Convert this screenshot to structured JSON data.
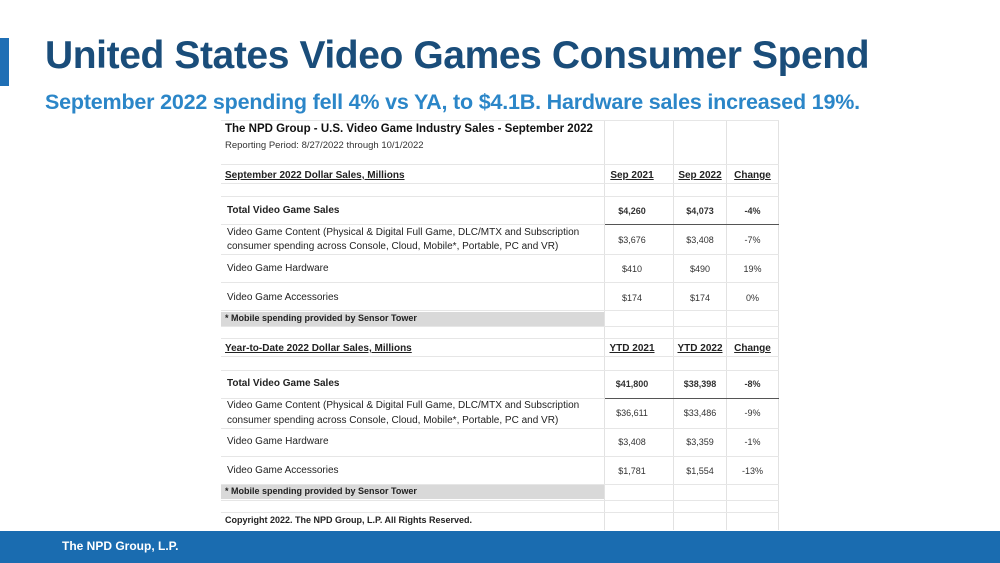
{
  "title": "United States Video Games Consumer Spend",
  "subtitle": "September 2022 spending fell 4% vs YA, to $4.1B. Hardware sales increased 19%.",
  "table": {
    "heading": "The NPD Group - U.S. Video Game Industry Sales - September 2022",
    "period": "Reporting Period: 8/27/2022 through 10/1/2022",
    "monthly": {
      "section_label": "September 2022 Dollar Sales, Millions",
      "col1": "Sep 2021",
      "col2": "Sep 2022",
      "col3": "Change",
      "total": {
        "label": "Total Video Game Sales",
        "v1": "$4,260",
        "v2": "$4,073",
        "v3": "-4%"
      },
      "content": {
        "label_line1": "Video Game Content (Physical & Digital Full Game, DLC/MTX and Subscription",
        "label_line2": "consumer spending across Console, Cloud, Mobile*, Portable, PC and VR)",
        "v1": "$3,676",
        "v2": "$3,408",
        "v3": "-7%"
      },
      "hardware": {
        "label": "Video Game Hardware",
        "v1": "$410",
        "v2": "$490",
        "v3": "19%"
      },
      "accessories": {
        "label": "Video Game Accessories",
        "v1": "$174",
        "v2": "$174",
        "v3": "0%"
      },
      "note": "* Mobile spending provided by Sensor Tower"
    },
    "ytd": {
      "section_label": "Year-to-Date 2022 Dollar Sales, Millions",
      "col1": "YTD 2021",
      "col2": "YTD 2022",
      "col3": "Change",
      "total": {
        "label": "Total Video Game Sales",
        "v1": "$41,800",
        "v2": "$38,398",
        "v3": "-8%"
      },
      "content": {
        "label_line1": "Video Game Content (Physical & Digital Full Game, DLC/MTX and Subscription",
        "label_line2": "consumer spending across Console, Cloud, Mobile*, Portable, PC and VR)",
        "v1": "$36,611",
        "v2": "$33,486",
        "v3": "-9%"
      },
      "hardware": {
        "label": "Video Game Hardware",
        "v1": "$3,408",
        "v2": "$3,359",
        "v3": "-1%"
      },
      "accessories": {
        "label": "Video Game Accessories",
        "v1": "$1,781",
        "v2": "$1,554",
        "v3": "-13%"
      },
      "note": "* Mobile spending provided by Sensor Tower"
    },
    "copyright": "Copyright 2022.  The NPD Group, L.P.  All Rights Reserved."
  },
  "footer": {
    "company": "The NPD Group, L.P."
  },
  "colors": {
    "title": "#1a4d7a",
    "subtitle": "#2b86c8",
    "footer_bg": "#1a6cb0",
    "accent_bar": "#1f6fb5",
    "note_bg": "#d9d9d9"
  }
}
